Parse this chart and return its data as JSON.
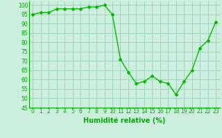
{
  "x": [
    0,
    1,
    2,
    3,
    4,
    5,
    6,
    7,
    8,
    9,
    10,
    11,
    12,
    13,
    14,
    15,
    16,
    17,
    18,
    19,
    20,
    21,
    22,
    23
  ],
  "y": [
    95,
    96,
    96,
    98,
    98,
    98,
    98,
    99,
    99,
    100,
    95,
    71,
    64,
    58,
    59,
    62,
    59,
    58,
    52,
    59,
    65,
    77,
    81,
    91
  ],
  "line_color": "#00bb00",
  "marker": "D",
  "marker_size": 2.0,
  "linewidth": 1.0,
  "bg_color": "#cceedd",
  "grid_color": "#99ccbb",
  "xlabel": "Humidité relative (%)",
  "xlabel_color": "#00aa00",
  "xlabel_fontsize": 7,
  "tick_color": "#00aa00",
  "tick_fontsize": 5.5,
  "ylim": [
    45,
    102
  ],
  "xlim": [
    -0.5,
    23.5
  ],
  "yticks": [
    45,
    50,
    55,
    60,
    65,
    70,
    75,
    80,
    85,
    90,
    95,
    100
  ],
  "xticks": [
    0,
    1,
    2,
    3,
    4,
    5,
    6,
    7,
    8,
    9,
    10,
    11,
    12,
    13,
    14,
    15,
    16,
    17,
    18,
    19,
    20,
    21,
    22,
    23
  ]
}
